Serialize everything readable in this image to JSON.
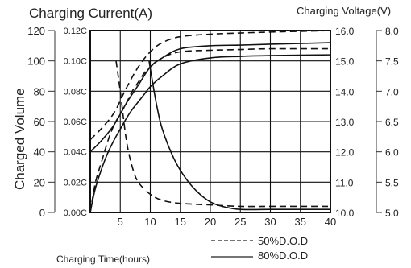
{
  "chart_data": {
    "type": "line",
    "title_left": "Charging Current(A)",
    "title_right": "Charging Voltage(V)",
    "ylabel": "Charged Volume",
    "xlabel": "Charging Time(hours)",
    "xlim": [
      0,
      40
    ],
    "x_ticks": [
      5,
      10,
      15,
      20,
      25,
      30,
      35,
      40
    ],
    "axes": {
      "charged_volume": {
        "range": [
          0,
          120
        ],
        "ticks": [
          "0",
          "20",
          "40",
          "60",
          "80",
          "100",
          "120"
        ]
      },
      "current": {
        "range": [
          0,
          0.12
        ],
        "ticks": [
          "0.00C",
          "0.02C",
          "0.04C",
          "0.06C",
          "0.08C",
          "0.10C",
          "0.12C"
        ]
      },
      "voltage_battery": {
        "range": [
          10.0,
          16.0
        ],
        "ticks": [
          "10.0",
          "11.0",
          "12.0",
          "13.0",
          "14.0",
          "15.0",
          "16.0"
        ]
      },
      "voltage_cell": {
        "range": [
          5.0,
          8.0
        ],
        "ticks": [
          "5.0",
          "5.5",
          "6.0",
          "6.5",
          "7.0",
          "7.5",
          "8.0"
        ]
      }
    },
    "grid": true,
    "legend": {
      "placement": "bottom-right",
      "entries": [
        {
          "label": "50%D.O.D",
          "style": "dashed"
        },
        {
          "label": "80%D.O.D",
          "style": "solid"
        }
      ]
    },
    "series": [
      {
        "group": "50%D.O.D",
        "style": "dashed",
        "quantity": "charged_volume",
        "axis": "charged_volume",
        "x": [
          0,
          0.5,
          1,
          2,
          3,
          4,
          5,
          6,
          7,
          8,
          9,
          10,
          12,
          15,
          20,
          25,
          30,
          40
        ],
        "y": [
          0,
          12,
          22,
          35,
          48,
          58,
          65,
          72,
          80,
          86,
          92,
          96,
          102,
          106,
          107,
          107.5,
          108,
          108
        ]
      },
      {
        "group": "80%D.O.D",
        "style": "solid",
        "quantity": "charged_volume",
        "axis": "charged_volume",
        "x": [
          0,
          0.5,
          1,
          2,
          3,
          4,
          5,
          6,
          7,
          8,
          9,
          10,
          12,
          15,
          20,
          25,
          30,
          40
        ],
        "y": [
          0,
          10,
          18,
          30,
          40,
          48,
          55,
          62,
          68,
          73,
          78,
          83,
          90,
          98,
          102,
          103,
          103.5,
          104
        ]
      },
      {
        "group": "50%D.O.D",
        "style": "dashed",
        "quantity": "charging_current",
        "axis": "current",
        "x": [
          4.3,
          5,
          6,
          7,
          8,
          10,
          12,
          15,
          20,
          25,
          30,
          40
        ],
        "y": [
          0.1,
          0.08,
          0.048,
          0.03,
          0.02,
          0.012,
          0.008,
          0.006,
          0.005,
          0.004,
          0.004,
          0.004
        ]
      },
      {
        "group": "80%D.O.D",
        "style": "solid",
        "quantity": "charging_current",
        "axis": "current",
        "x": [
          9.8,
          10,
          11,
          12,
          14,
          16,
          18,
          20,
          22,
          25,
          30,
          40
        ],
        "y": [
          0.1,
          0.095,
          0.072,
          0.055,
          0.035,
          0.022,
          0.013,
          0.007,
          0.004,
          0.002,
          0.002,
          0.002
        ]
      },
      {
        "group": "50%D.O.D",
        "style": "dashed",
        "quantity": "charging_voltage",
        "axis": "voltage_battery",
        "x": [
          0,
          2,
          4,
          6,
          8,
          10,
          12,
          15,
          20,
          25,
          30,
          40
        ],
        "y": [
          12.4,
          12.8,
          13.3,
          14.1,
          14.8,
          15.3,
          15.6,
          15.8,
          15.88,
          15.92,
          15.95,
          16.0
        ]
      },
      {
        "group": "80%D.O.D",
        "style": "solid",
        "quantity": "charging_voltage",
        "axis": "voltage_battery",
        "x": [
          0,
          2,
          4,
          6,
          8,
          10,
          12,
          15,
          20,
          25,
          30,
          40
        ],
        "y": [
          12.0,
          12.4,
          12.9,
          13.6,
          14.2,
          14.8,
          15.1,
          15.4,
          15.5,
          15.52,
          15.55,
          15.6
        ]
      }
    ]
  }
}
